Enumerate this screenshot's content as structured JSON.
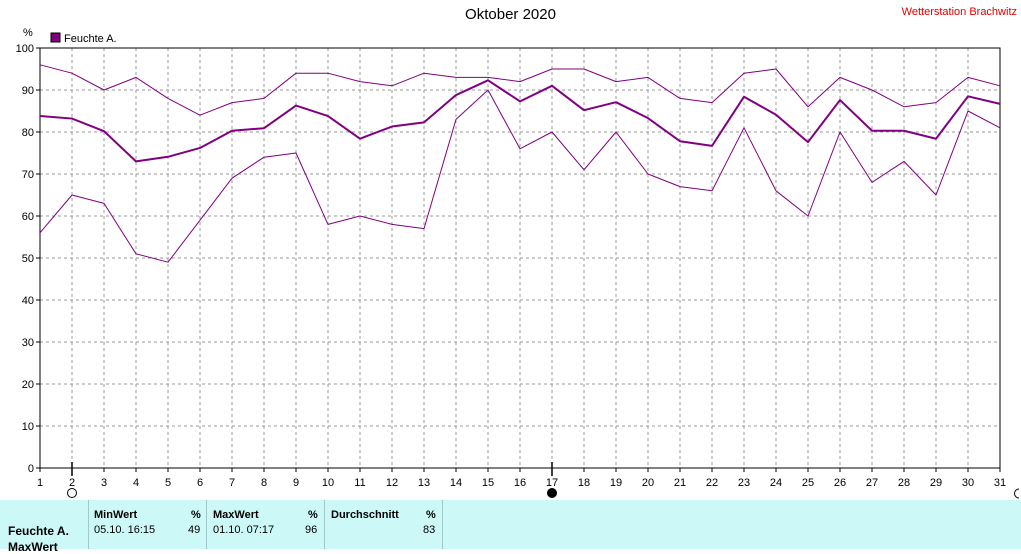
{
  "chart_data": {
    "type": "line",
    "title": "Oktober 2020",
    "ylabel": "%",
    "ylim": [
      0,
      100
    ],
    "yticks": [
      0,
      10,
      20,
      30,
      40,
      50,
      60,
      70,
      80,
      90,
      100
    ],
    "x": [
      1,
      2,
      3,
      4,
      5,
      6,
      7,
      8,
      9,
      10,
      11,
      12,
      13,
      14,
      15,
      16,
      17,
      18,
      19,
      20,
      21,
      22,
      23,
      24,
      25,
      26,
      27,
      28,
      29,
      30,
      31
    ],
    "legend": "top-left",
    "grid": true,
    "series": [
      {
        "name": "Feuchte A.",
        "role": "mean",
        "values": [
          83.8,
          83.2,
          80.2,
          73.0,
          74.1,
          76.2,
          80.3,
          80.9,
          86.3,
          83.8,
          78.4,
          81.3,
          82.3,
          88.8,
          92.3,
          87.3,
          91.0,
          85.2,
          87.1,
          83.3,
          77.8,
          76.7,
          88.4,
          84.1,
          77.6,
          87.6,
          80.3,
          80.3,
          78.4,
          88.5,
          86.7
        ]
      },
      {
        "role": "max",
        "values": [
          96,
          94,
          90,
          93,
          88,
          84,
          87,
          88,
          94,
          94,
          92,
          91,
          94,
          93,
          93,
          92,
          95,
          95,
          92,
          93,
          88,
          87,
          94,
          95,
          86,
          93,
          90,
          86,
          87,
          93,
          91
        ]
      },
      {
        "role": "min",
        "values": [
          56,
          65,
          63,
          51,
          49,
          59,
          69,
          74,
          75,
          58,
          60,
          58,
          57,
          83,
          90,
          76,
          80,
          71,
          80,
          70,
          67,
          66,
          81,
          66,
          60,
          80,
          68,
          73,
          65,
          85,
          81
        ]
      }
    ]
  },
  "colors": {
    "line": "#800080",
    "grid": "#999999",
    "station": "#e00000",
    "panel": "#cdf8f8"
  },
  "header": {
    "title": "Oktober 2020",
    "station": "Wetterstation Brachwitz"
  },
  "legend": {
    "label": "Feuchte A."
  },
  "axis": {
    "unit": "%"
  },
  "stats": {
    "series_name": "Feuchte A.",
    "series_sub": "MaxWert",
    "min": {
      "label": "MinWert",
      "unit": "%",
      "time": "05.10.  16:15",
      "value": "49"
    },
    "max": {
      "label": "MaxWert",
      "unit": "%",
      "time": "01.10.  07:17",
      "value": "96"
    },
    "avg": {
      "label": "Durchschnitt",
      "unit": "%",
      "value": "83"
    }
  }
}
